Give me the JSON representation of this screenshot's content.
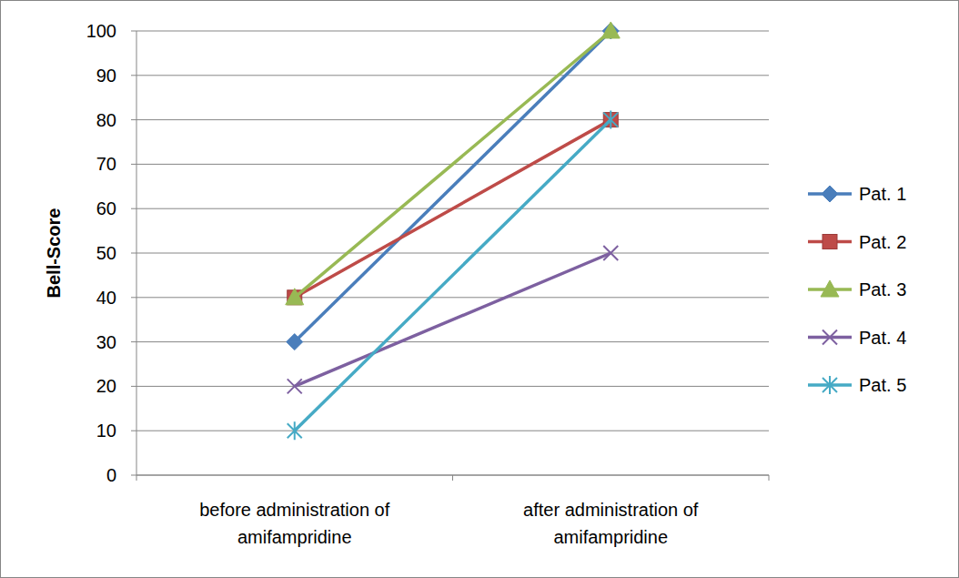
{
  "chart_data": {
    "type": "line",
    "y_label": "Bell-Score",
    "categories": [
      "before administration of amifampridine",
      "after administration of amifampridine"
    ],
    "series": [
      {
        "name": "Pat. 1",
        "color": "#4a7ebb",
        "marker": "diamond",
        "line_style": "solid",
        "values": [
          30,
          100
        ]
      },
      {
        "name": "Pat. 2",
        "color": "#be4b48",
        "marker": "square",
        "line_style": "solid",
        "values": [
          40,
          80
        ]
      },
      {
        "name": "Pat. 3",
        "color": "#98b954",
        "marker": "triangle",
        "line_style": "solid",
        "values": [
          40,
          100
        ]
      },
      {
        "name": "Pat. 4",
        "color": "#7d60a0",
        "marker": "x",
        "line_style": "solid",
        "values": [
          20,
          50
        ]
      },
      {
        "name": "Pat. 5",
        "color": "#46aac5",
        "marker": "star",
        "line_style": "solid",
        "values": [
          10,
          80
        ]
      }
    ],
    "ylim": [
      0,
      100
    ],
    "yticks": [
      0,
      10,
      20,
      30,
      40,
      50,
      60,
      70,
      80,
      90,
      100
    ],
    "grid": true,
    "legend": "right"
  }
}
